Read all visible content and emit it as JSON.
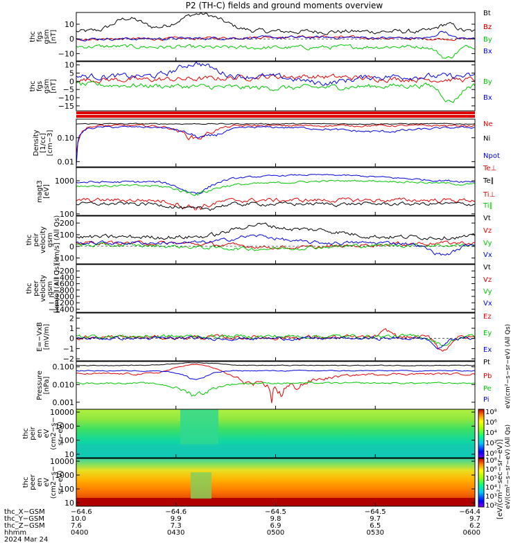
{
  "title": "P2 (TH-C) fields and ground moments overview",
  "colors": {
    "black": "#000000",
    "red": "#e00000",
    "green": "#00c800",
    "blue": "#0000e0"
  },
  "chart_data": [
    {
      "type": "line",
      "id": "fgs_gsm",
      "ylabel": [
        "thc",
        "fgs",
        "gsm",
        "[nT]"
      ],
      "yticks": [
        "10",
        "0",
        "−10"
      ],
      "ylim": [
        -15,
        18
      ],
      "series": [
        {
          "name": "Bt",
          "color": "black"
        },
        {
          "name": "Bz",
          "color": "red"
        },
        {
          "name": "By",
          "color": "green"
        },
        {
          "name": "Bx",
          "color": "blue"
        }
      ]
    },
    {
      "type": "line",
      "id": "fgs_gse",
      "ylabel": [
        "thc",
        "fgs",
        "gsm",
        "[nT]"
      ],
      "yticks": [
        "10",
        "5",
        "0",
        "−5",
        "−10",
        "−15"
      ],
      "ylim": [
        -18,
        12
      ],
      "series": [
        {
          "name": "Bz",
          "color": "red"
        },
        {
          "name": "By",
          "color": "green"
        },
        {
          "name": "Bx",
          "color": "blue"
        }
      ]
    },
    {
      "type": "line",
      "id": "density",
      "ylabel": [
        "Density",
        "[1/cc]",
        "[cm−3]"
      ],
      "yticks": [
        "0.10",
        "0.01"
      ],
      "ylim": [
        0.006,
        0.6
      ],
      "yscale": "log",
      "series": [
        {
          "name": "Ne",
          "color": "red"
        },
        {
          "name": "Ni",
          "color": "black"
        },
        {
          "name": "Npot",
          "color": "blue"
        }
      ]
    },
    {
      "type": "line",
      "id": "temperature",
      "ylabel": [
        "magt3",
        "[eV]"
      ],
      "yticks": [
        "1000",
        "100"
      ],
      "ylim": [
        90,
        2500
      ],
      "yscale": "log",
      "series": [
        {
          "name": "Te⊥",
          "color": "red"
        },
        {
          "name": "Te∥",
          "color": "black"
        },
        {
          "name": "Ti⊥",
          "color": "red"
        },
        {
          "name": "Ti∥",
          "color": "green"
        }
      ]
    },
    {
      "type": "line",
      "id": "peir_velocity",
      "ylabel": [
        "thc",
        "peir",
        "velocity",
        "gsm",
        "[km/s] (All Qs)"
      ],
      "yticks": [
        "200",
        "100",
        "0",
        "−100"
      ],
      "ylim": [
        -150,
        260
      ],
      "series": [
        {
          "name": "Vt",
          "color": "black"
        },
        {
          "name": "Vz",
          "color": "red"
        },
        {
          "name": "Vy",
          "color": "green"
        },
        {
          "name": "Vx",
          "color": "blue"
        }
      ]
    },
    {
      "type": "line",
      "id": "peer_velocity",
      "ylabel": [
        "thc",
        "peer",
        "velocity",
        "gsm",
        "[km/s] (All Qs)"
      ],
      "yticks": [
        "−200",
        "−400",
        "−600",
        "−800",
        "−1000",
        "−1200",
        "−1400"
      ],
      "ylim": [
        -1500,
        0
      ],
      "series": [
        {
          "name": "Vt",
          "color": "black"
        },
        {
          "name": "Vz",
          "color": "red"
        },
        {
          "name": "Vy",
          "color": "green"
        },
        {
          "name": "Vx",
          "color": "blue"
        }
      ]
    },
    {
      "type": "line",
      "id": "efield",
      "ylabel": [
        "E=−VxB",
        "[mV/m]"
      ],
      "yticks": [
        "2",
        "1",
        "0",
        "−1",
        "−2"
      ],
      "ylim": [
        -2.2,
        2.5
      ],
      "series": [
        {
          "name": "Ez",
          "color": "red"
        },
        {
          "name": "Ey",
          "color": "green"
        },
        {
          "name": "Ex",
          "color": "blue"
        }
      ]
    },
    {
      "type": "line",
      "id": "pressure",
      "ylabel": [
        "Pressure",
        "[nPa]"
      ],
      "yticks": [
        "0.100",
        "0.010",
        "0.001"
      ],
      "ylim": [
        0.0004,
        0.2
      ],
      "yscale": "log",
      "series": [
        {
          "name": "Pt",
          "color": "black"
        },
        {
          "name": "Pb",
          "color": "red"
        },
        {
          "name": "Pe",
          "color": "green"
        },
        {
          "name": "Pi",
          "color": "blue"
        }
      ]
    },
    {
      "type": "heatmap",
      "id": "peir_spec",
      "ylabel": [
        "thc",
        "peir",
        "en",
        "eV",
        "(cm2−s−",
        "sr−eV)"
      ],
      "yticks": [
        "10000",
        "1000",
        "100",
        "10"
      ],
      "yscale": "log"
    },
    {
      "type": "heatmap",
      "id": "peer_spec",
      "ylabel": [
        "thc",
        "peer",
        "en",
        "eV",
        "(cm2−s−",
        "sr−eV)"
      ],
      "yticks": [
        "10000",
        "1000",
        "100",
        "10"
      ],
      "yscale": "log"
    }
  ],
  "colorbar": {
    "ticks": [
      "10⁸",
      "10⁶",
      "10⁴",
      "10²",
      "10⁰"
    ],
    "ticks_lower": [
      "10⁸",
      "10⁶",
      "10⁵",
      "10⁴",
      "10³",
      "10²"
    ],
    "unit_label": "[eV/(cm²−sec−sr−eV)]",
    "upper_label": "eV/(cm²−s−sr−eV) (All Qs)",
    "lower_label": "eV/(cm²−s−sr−eV) (All Qs)"
  },
  "x_axis": {
    "row_labels": [
      "thc_X−GSM",
      "thc_Y−GSM",
      "thc_Z−GSM",
      "hhmm",
      "2024 Mar 24"
    ],
    "columns": [
      {
        "x": "−64.6",
        "y": "10.0",
        "z": "7.6",
        "hhmm": "0400"
      },
      {
        "x": "−64.6",
        "y": "9.9",
        "z": "7.3",
        "hhmm": "0430"
      },
      {
        "x": "−64.5",
        "y": "9.8",
        "z": "6.9",
        "hhmm": "0500"
      },
      {
        "x": "−64.5",
        "y": "9.7",
        "z": "6.5",
        "hhmm": "0530"
      },
      {
        "x": "−64.4",
        "y": "9.7",
        "z": "6.2",
        "hhmm": "0600"
      }
    ]
  }
}
